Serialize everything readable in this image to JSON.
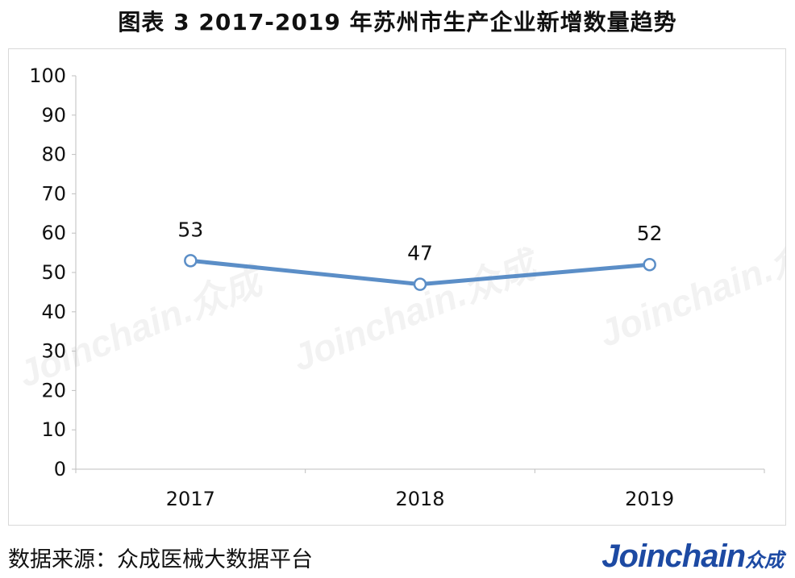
{
  "header": {
    "title": "图表 3   2017-2019 年苏州市生产企业新增数量趋势"
  },
  "footer": {
    "source": "数据来源：众成医械大数据平台",
    "logo_text": "Joinchain",
    "logo_cn": "众成"
  },
  "watermark": {
    "text": "Joinchain.众成"
  },
  "colors": {
    "line": "#5b8ec7",
    "point_fill": "#ffffff",
    "axis": "#bfbfbf"
  },
  "chart_data": {
    "type": "line",
    "title": "2017-2019 年苏州市生产企业新增数量趋势",
    "categories": [
      "2017",
      "2018",
      "2019"
    ],
    "series": [
      {
        "values": [
          53,
          47,
          52
        ]
      }
    ],
    "ylim": [
      0,
      100
    ],
    "yticks": [
      0,
      10,
      20,
      30,
      40,
      50,
      60,
      70,
      80,
      90,
      100
    ],
    "grid": false,
    "legend": "none",
    "data_labels": true
  }
}
